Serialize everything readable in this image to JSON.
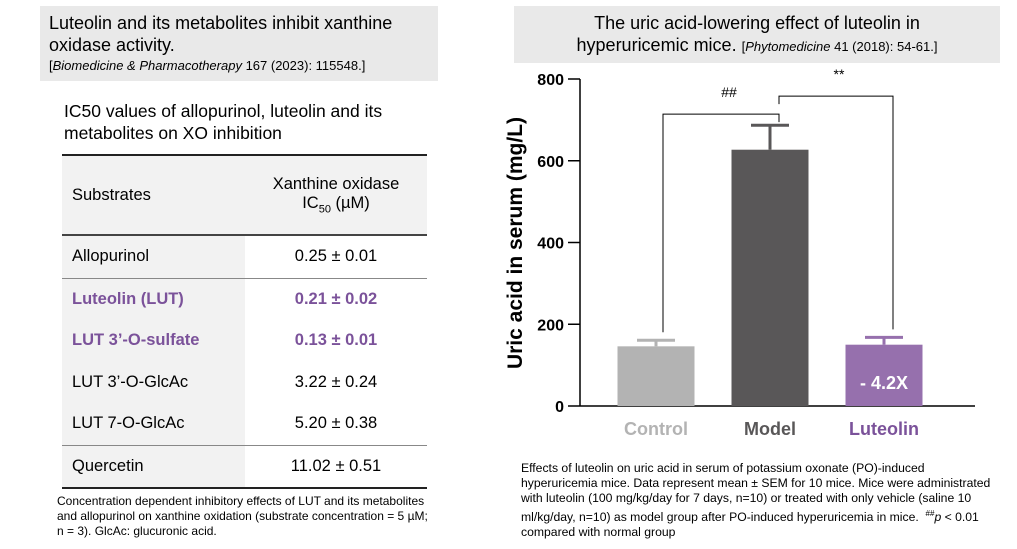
{
  "left": {
    "title": "Luteolin and its metabolites inhibit xanthine oxidase activity.",
    "citation_journal": "Biomedicine & Pharmacotherapy",
    "citation_rest": " 167 (2023): 115548.]",
    "citation_open": "[",
    "table_caption": "IC50 values of allopurinol, luteolin and its metabolites on XO inhibition",
    "table": {
      "header_substrates": "Substrates",
      "header_value_line1": "Xanthine oxidase",
      "header_value_ic": "IC",
      "header_value_sub": "50",
      "header_value_unit": " (µM)",
      "rows": [
        {
          "substrate": "Allopurinol",
          "value": "0.25 ± 0.01"
        },
        {
          "substrate": "Luteolin (LUT)",
          "value": "0.21 ± 0.02"
        },
        {
          "substrate": "LUT 3’-O-sulfate",
          "value": "0.13 ± 0.01"
        },
        {
          "substrate": "LUT 3’-O-GlcAc",
          "value": "3.22 ± 0.24"
        },
        {
          "substrate": "LUT 7-O-GlcAc",
          "value": "5.20 ± 0.38"
        },
        {
          "substrate": "Quercetin",
          "value": "11.02 ± 0.51"
        }
      ]
    },
    "note": "Concentration dependent inhibitory effects of LUT and its metabolites and allopurinol on xanthine oxidation (substrate concentration = 5 µM; n = 3). GlcAc: glucuronic acid."
  },
  "right": {
    "title": "The uric acid-lowering effect of luteolin in hyperuricemic mice.",
    "citation_journal": "Phytomedicine",
    "citation_rest": " 41 (2018): 54-61.]",
    "citation_open": "[",
    "note": "Effects of luteolin on uric acid in serum of potassium oxonate (PO)-induced hyperuricemia mice. Data represent mean ± SEM for 10 mice. Mice were administrated with luteolin (100 mg/kg/day for 7 days, n=10) or treated with only vehicle (saline 10 ml/kg/day, n=10) as model group after PO-induced hyperuricemia in mice.",
    "note_sig_mark": "##",
    "note_sig_p": "p",
    "note_sig_rest": " < 0.01 compared with normal group"
  },
  "chart_data": {
    "type": "bar",
    "categories": [
      "Control",
      "Model",
      "Luteolin"
    ],
    "values": [
      146,
      627,
      150
    ],
    "errors": [
      15,
      60,
      18
    ],
    "colors": [
      "#b3b3b3",
      "#595758",
      "#9670ad"
    ],
    "label_colors": [
      "#b3b3b3",
      "#595758",
      "#7b529a"
    ],
    "ylabel": "Uric acid in serum (mg/L)",
    "ylim": [
      0,
      800
    ],
    "yticks": [
      0,
      200,
      400,
      600,
      800
    ],
    "bar_annotation": {
      "category": "Luteolin",
      "text": "- 4.2X"
    },
    "significance": [
      {
        "from": "Control",
        "to": "Model",
        "label": "##",
        "level": 714
      },
      {
        "from": "Model",
        "to": "Luteolin",
        "label": "**",
        "level": 758
      }
    ]
  }
}
